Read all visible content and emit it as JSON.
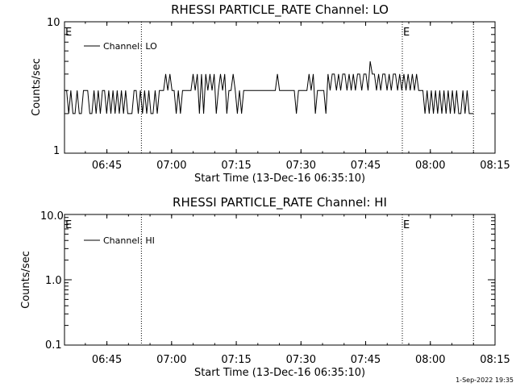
{
  "chart_data": [
    {
      "type": "line",
      "title": "RHESSI PARTICLE_RATE Channel: LO",
      "xlabel": "Start Time (13-Dec-16 06:35:10)",
      "ylabel": "Counts/sec",
      "yscale": "log",
      "ylim": [
        1,
        10
      ],
      "y_tick_labels": [
        "1",
        "10"
      ],
      "xlim": [
        "06:35:10",
        "08:15:00"
      ],
      "x_tick_labels": [
        "06:45",
        "07:00",
        "07:15",
        "07:30",
        "07:45",
        "08:00",
        "08:15"
      ],
      "legend": "top-left",
      "series": [
        {
          "name": "Channel: LO",
          "t_start": "06:35:10",
          "t_end": "08:10:00",
          "values": [
            3,
            3,
            2,
            3,
            2,
            2,
            3,
            2,
            2,
            3,
            3,
            3,
            2,
            2,
            3,
            2,
            3,
            2,
            3,
            3,
            2,
            3,
            2,
            3,
            2,
            3,
            2,
            3,
            2,
            3,
            2,
            2,
            2,
            3,
            3,
            2,
            3,
            2,
            3,
            2,
            3,
            2,
            2,
            3,
            2,
            3,
            3,
            3,
            4,
            3,
            4,
            3,
            3,
            2,
            3,
            2,
            3,
            3,
            3,
            3,
            3,
            4,
            3,
            4,
            2,
            4,
            2,
            4,
            3,
            4,
            3,
            4,
            2,
            3,
            4,
            3,
            4,
            2,
            3,
            3,
            4,
            3,
            2,
            3,
            2,
            3,
            3,
            3,
            3,
            3,
            3,
            3,
            3,
            3,
            3,
            3,
            3,
            3,
            3,
            3,
            3,
            4,
            3,
            3,
            3,
            3,
            3,
            3,
            3,
            3,
            2,
            3,
            3,
            3,
            3,
            3,
            4,
            3,
            4,
            2,
            3,
            3,
            3,
            3,
            2,
            4,
            3,
            4,
            4,
            3,
            4,
            3,
            4,
            4,
            3,
            4,
            3,
            4,
            3,
            4,
            4,
            3,
            4,
            4,
            3,
            5,
            4,
            4,
            3,
            4,
            3,
            4,
            4,
            3,
            4,
            3,
            4,
            4,
            3,
            4,
            3,
            4,
            3,
            4,
            3,
            4,
            3,
            4,
            3,
            3,
            3,
            2,
            3,
            2,
            3,
            2,
            3,
            2,
            3,
            2,
            3,
            2,
            3,
            2,
            3,
            2,
            3,
            2,
            2,
            3,
            2,
            3,
            2,
            2,
            2
          ]
        }
      ],
      "event_lines": [
        "06:53:00",
        "07:53:30",
        "08:10:00"
      ],
      "event_labels": [
        {
          "text": "E",
          "time": "06:35:10"
        },
        {
          "text": "E",
          "time": "07:53:30"
        }
      ]
    },
    {
      "type": "line",
      "title": "RHESSI PARTICLE_RATE Channel: HI",
      "xlabel": "Start Time (13-Dec-16 06:35:10)",
      "ylabel": "Counts/sec",
      "yscale": "log",
      "ylim": [
        0.1,
        10
      ],
      "y_tick_labels": [
        "0.1",
        "1.0",
        "10.0"
      ],
      "xlim": [
        "06:35:10",
        "08:15:00"
      ],
      "x_tick_labels": [
        "06:45",
        "07:00",
        "07:15",
        "07:30",
        "07:45",
        "08:00",
        "08:15"
      ],
      "legend": "top-left",
      "series": [
        {
          "name": "Channel: HI",
          "values": []
        }
      ],
      "event_lines": [
        "06:53:00",
        "07:53:30",
        "08:10:00"
      ],
      "event_labels": [
        {
          "text": "E",
          "time": "06:35:10"
        },
        {
          "text": "E",
          "time": "07:53:30"
        }
      ]
    }
  ],
  "footer": {
    "timestamp": "1-Sep-2022 19:35"
  }
}
